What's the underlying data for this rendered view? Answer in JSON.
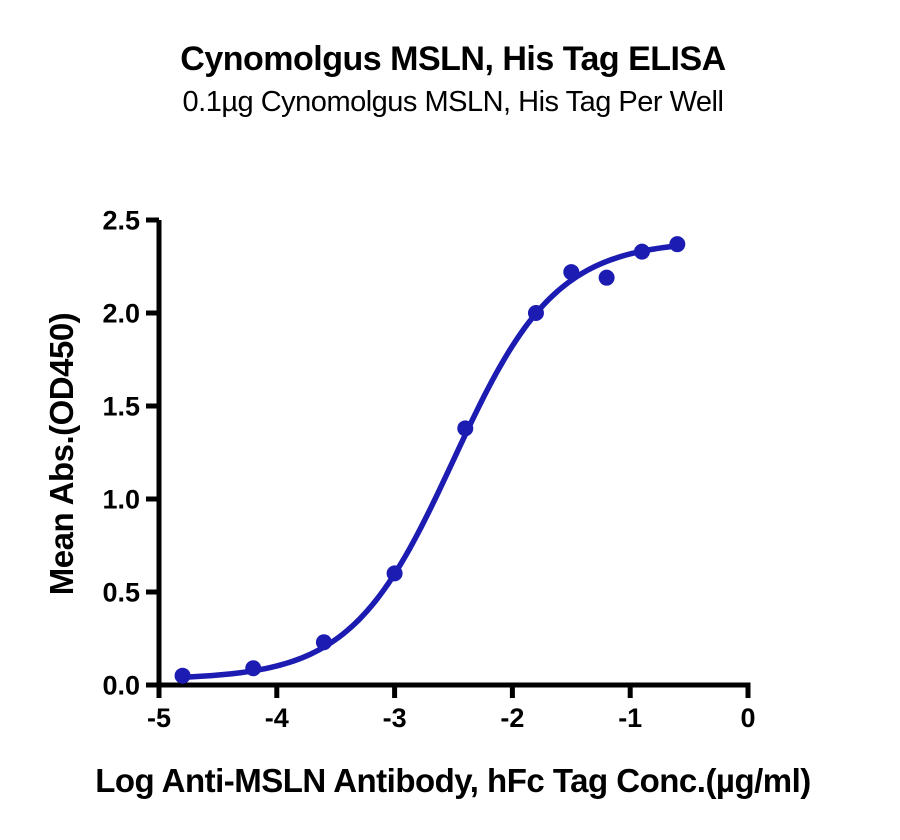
{
  "header": {
    "title": "Cynomolgus MSLN, His Tag ELISA",
    "subtitle": "0.1µg Cynomolgus MSLN, His Tag Per Well"
  },
  "chart_data": {
    "type": "scatter",
    "title": "Cynomolgus MSLN, His Tag ELISA",
    "subtitle": "0.1µg Cynomolgus MSLN, His Tag Per Well",
    "xlabel": "Log Anti-MSLN Antibody, hFc Tag Conc.(µg/ml)",
    "ylabel": "Mean Abs.(OD450)",
    "xlim": [
      -5,
      0
    ],
    "ylim": [
      0,
      2.5
    ],
    "grid": false,
    "legend": "none",
    "background": "#ffffff",
    "axis_color": "#000000",
    "x_ticks": {
      "values": [
        -5,
        -4,
        -3,
        -2,
        -1,
        0
      ],
      "labels": [
        "-5",
        "-4",
        "-3",
        "-2",
        "-1",
        "0"
      ]
    },
    "y_ticks": {
      "values": [
        0,
        0.5,
        1.0,
        1.5,
        2.0,
        2.5
      ],
      "labels": [
        "0.0",
        "0.5",
        "1.0",
        "1.5",
        "2.0",
        "2.5"
      ]
    },
    "series": [
      {
        "name": "Anti-MSLN Antibody, hFc Tag",
        "color": "#1c1cb2",
        "marker": "circle",
        "points": [
          {
            "x": -4.8,
            "y": 0.05
          },
          {
            "x": -4.2,
            "y": 0.09
          },
          {
            "x": -3.6,
            "y": 0.23
          },
          {
            "x": -3.0,
            "y": 0.6
          },
          {
            "x": -2.4,
            "y": 1.38
          },
          {
            "x": -1.8,
            "y": 2.0
          },
          {
            "x": -1.5,
            "y": 2.22
          },
          {
            "x": -1.2,
            "y": 2.19
          },
          {
            "x": -0.9,
            "y": 2.33
          },
          {
            "x": -0.6,
            "y": 2.37
          }
        ],
        "fit_curve_4pl": {
          "bottom": 0.03,
          "top": 2.39,
          "log_ec50": -2.5,
          "hill": 1.0,
          "x_range": [
            -4.8,
            -0.6
          ]
        }
      }
    ]
  }
}
